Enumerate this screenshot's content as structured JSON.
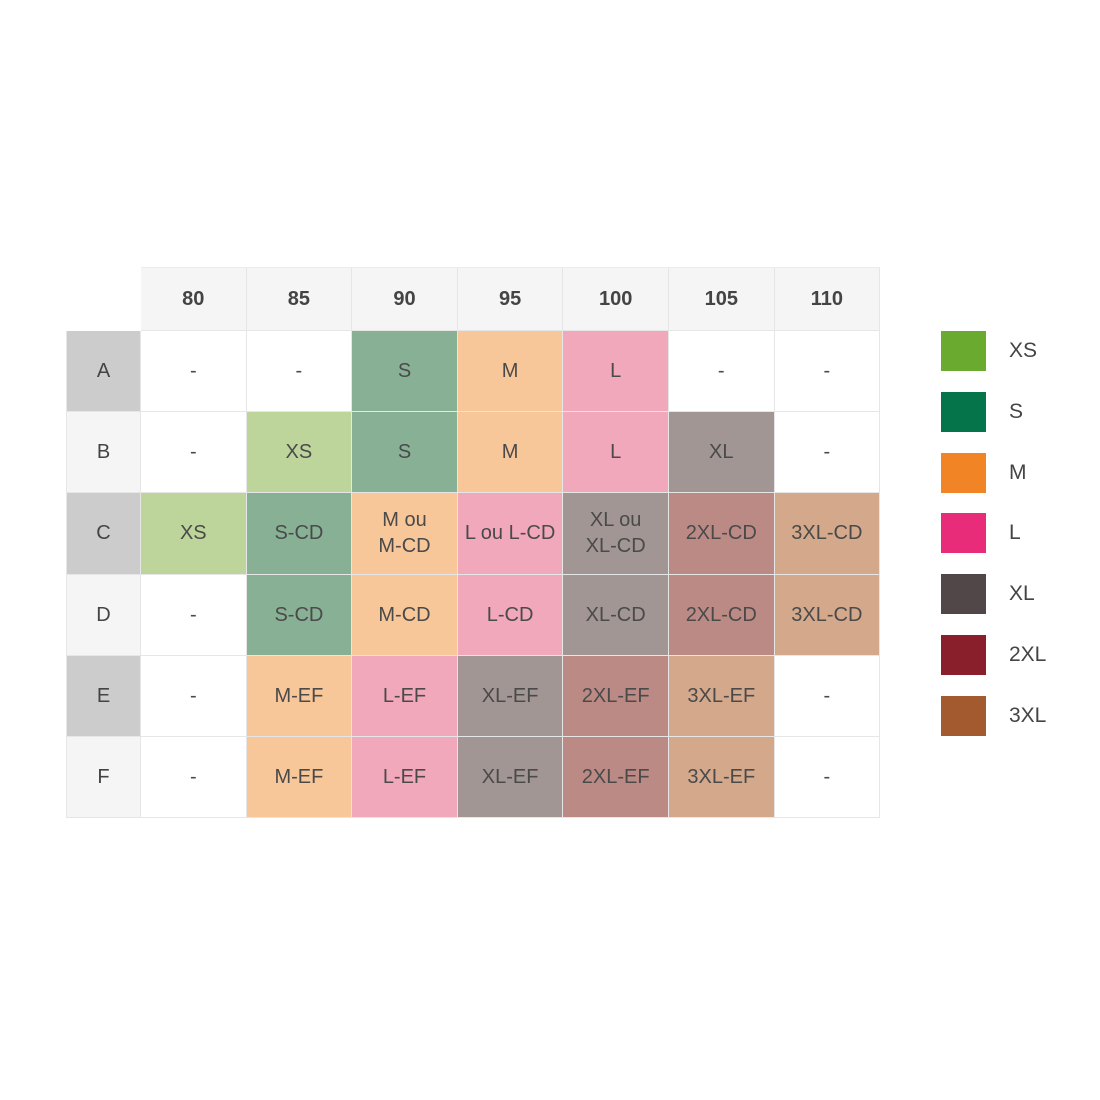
{
  "columns": [
    "80",
    "85",
    "90",
    "95",
    "100",
    "105",
    "110"
  ],
  "rows": [
    {
      "label": "A",
      "bg": "#cccccc",
      "cells": [
        [
          "-",
          ""
        ],
        [
          "-",
          ""
        ],
        [
          "S",
          "S"
        ],
        [
          "M",
          "M"
        ],
        [
          "L",
          "L"
        ],
        [
          "-",
          ""
        ],
        [
          "-",
          ""
        ]
      ]
    },
    {
      "label": "B",
      "bg": "#f5f5f5",
      "cells": [
        [
          "-",
          ""
        ],
        [
          "XS",
          "XS"
        ],
        [
          "S",
          "S"
        ],
        [
          "M",
          "M"
        ],
        [
          "L",
          "L"
        ],
        [
          "XL",
          "XL"
        ],
        [
          "-",
          ""
        ]
      ]
    },
    {
      "label": "C",
      "bg": "#cccccc",
      "cells": [
        [
          "XS",
          "XS"
        ],
        [
          "S-CD",
          "S"
        ],
        [
          "M ou\nM-CD",
          "M"
        ],
        [
          "L ou L-CD",
          "L"
        ],
        [
          "XL ou\nXL-CD",
          "XL"
        ],
        [
          "2XL-CD",
          "2XL"
        ],
        [
          "3XL-CD",
          "3XL"
        ]
      ]
    },
    {
      "label": "D",
      "bg": "#f5f5f5",
      "cells": [
        [
          "-",
          ""
        ],
        [
          "S-CD",
          "S"
        ],
        [
          "M-CD",
          "M"
        ],
        [
          "L-CD",
          "L"
        ],
        [
          "XL-CD",
          "XL"
        ],
        [
          "2XL-CD",
          "2XL"
        ],
        [
          "3XL-CD",
          "3XL"
        ]
      ]
    },
    {
      "label": "E",
      "bg": "#cccccc",
      "cells": [
        [
          "-",
          ""
        ],
        [
          "M-EF",
          "M"
        ],
        [
          "L-EF",
          "L"
        ],
        [
          "XL-EF",
          "XL"
        ],
        [
          "2XL-EF",
          "2XL"
        ],
        [
          "3XL-EF",
          "3XL"
        ],
        [
          "-",
          ""
        ]
      ]
    },
    {
      "label": "F",
      "bg": "#f5f5f5",
      "cells": [
        [
          "-",
          ""
        ],
        [
          "M-EF",
          "M"
        ],
        [
          "L-EF",
          "L"
        ],
        [
          "XL-EF",
          "XL"
        ],
        [
          "2XL-EF",
          "2XL"
        ],
        [
          "3XL-EF",
          "3XL"
        ],
        [
          "-",
          ""
        ]
      ]
    }
  ],
  "cell_colors": {
    "": "#ffffff",
    "XS": "#bdd59a",
    "S": "#88b095",
    "M": "#f8c799",
    "L": "#f2a8bb",
    "XL": "#a19693",
    "2XL": "#bc8a84",
    "3XL": "#d3a88b"
  },
  "legend": [
    {
      "label": "XS",
      "color": "#6aaa2e"
    },
    {
      "label": "S",
      "color": "#05744a"
    },
    {
      "label": "M",
      "color": "#f18526"
    },
    {
      "label": "L",
      "color": "#e92c79"
    },
    {
      "label": "XL",
      "color": "#524748"
    },
    {
      "label": "2XL",
      "color": "#891f2a"
    },
    {
      "label": "3XL",
      "color": "#a35a2e"
    }
  ]
}
